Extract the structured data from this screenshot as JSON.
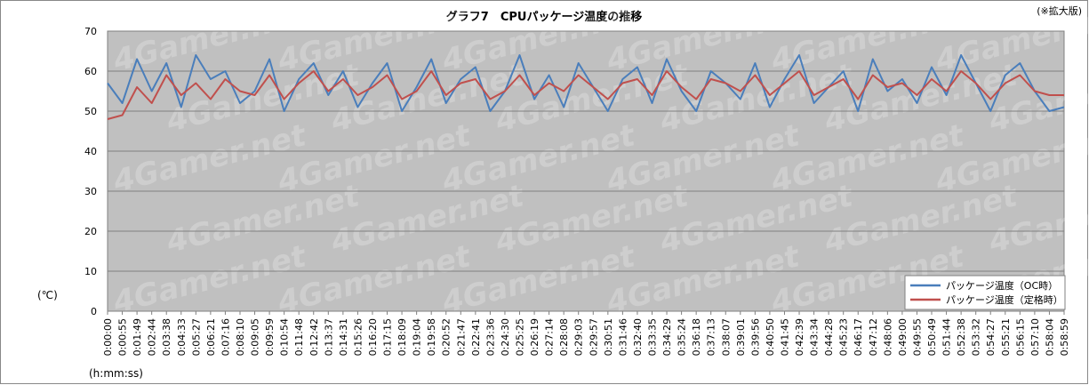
{
  "chart_data": {
    "type": "line",
    "title": "グラフ7　CPUパッケージ温度の推移",
    "note": "(※拡大版)",
    "ylabel": "(℃)",
    "xlabel": "(h:mm:ss)",
    "ylim": [
      0,
      70
    ],
    "yticks": [
      0,
      10,
      20,
      30,
      40,
      50,
      60,
      70
    ],
    "grid": true,
    "legend_position": "bottom-right",
    "plot_background": "#c0c0c0",
    "watermark": "4Gamer.net",
    "categories": [
      "0:00:00",
      "0:00:55",
      "0:01:49",
      "0:02:44",
      "0:03:38",
      "0:04:33",
      "0:05:27",
      "0:06:21",
      "0:07:16",
      "0:08:10",
      "0:09:05",
      "0:09:59",
      "0:10:54",
      "0:11:48",
      "0:12:42",
      "0:13:37",
      "0:14:31",
      "0:15:26",
      "0:16:20",
      "0:17:15",
      "0:18:09",
      "0:19:04",
      "0:19:58",
      "0:20:52",
      "0:21:47",
      "0:22:41",
      "0:23:36",
      "0:24:30",
      "0:25:25",
      "0:26:19",
      "0:27:14",
      "0:28:08",
      "0:29:03",
      "0:29:57",
      "0:30:51",
      "0:31:46",
      "0:32:40",
      "0:33:35",
      "0:34:29",
      "0:35:24",
      "0:36:18",
      "0:37:13",
      "0:38:07",
      "0:39:01",
      "0:39:56",
      "0:40:50",
      "0:41:45",
      "0:42:39",
      "0:43:34",
      "0:44:28",
      "0:45:23",
      "0:46:17",
      "0:47:12",
      "0:48:06",
      "0:49:00",
      "0:49:55",
      "0:50:49",
      "0:51:44",
      "0:52:38",
      "0:53:32",
      "0:54:27",
      "0:55:21",
      "0:56:15",
      "0:57:10",
      "0:58:04",
      "0:58:59"
    ],
    "series": [
      {
        "name": "パッケージ温度（OC時）",
        "color": "#4a7ebb",
        "values": [
          57,
          52,
          63,
          55,
          62,
          51,
          64,
          58,
          60,
          52,
          55,
          63,
          50,
          58,
          62,
          54,
          60,
          51,
          57,
          62,
          50,
          56,
          63,
          52,
          58,
          61,
          50,
          55,
          64,
          53,
          59,
          51,
          62,
          56,
          50,
          58,
          61,
          52,
          63,
          55,
          50,
          60,
          57,
          53,
          62,
          51,
          58,
          64,
          52,
          56,
          60,
          50,
          63,
          55,
          58,
          52,
          61,
          54,
          64,
          57,
          50,
          59,
          62,
          55,
          50,
          51
        ]
      },
      {
        "name": "パッケージ温度（定格時）",
        "color": "#c0504d",
        "values": [
          48,
          49,
          56,
          52,
          59,
          54,
          57,
          53,
          58,
          55,
          54,
          59,
          53,
          57,
          60,
          55,
          58,
          54,
          56,
          59,
          53,
          55,
          60,
          54,
          57,
          58,
          53,
          55,
          59,
          54,
          57,
          55,
          59,
          56,
          53,
          57,
          58,
          54,
          60,
          56,
          53,
          58,
          57,
          55,
          59,
          54,
          57,
          60,
          54,
          56,
          58,
          53,
          59,
          56,
          57,
          54,
          58,
          55,
          60,
          57,
          53,
          57,
          59,
          55,
          54,
          54
        ]
      }
    ]
  }
}
